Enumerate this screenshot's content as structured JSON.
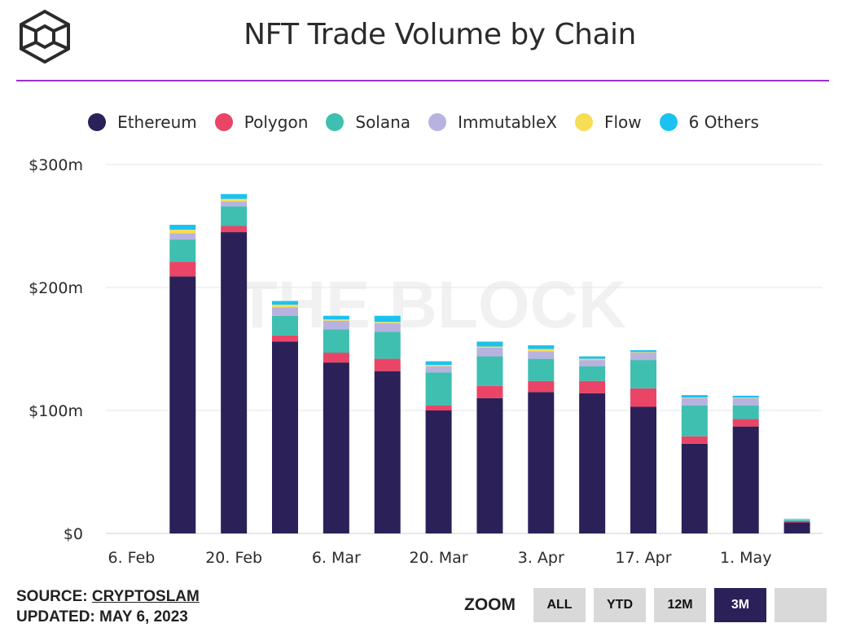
{
  "header": {
    "title": "NFT Trade Volume by Chain"
  },
  "colors": {
    "accent_rule": "#9b2fd6",
    "active_button": "#2b2058"
  },
  "legend": [
    {
      "label": "Ethereum",
      "color": "#2b2158"
    },
    {
      "label": "Polygon",
      "color": "#ea4466"
    },
    {
      "label": "Solana",
      "color": "#3ebfb0"
    },
    {
      "label": "ImmutableX",
      "color": "#b8b2e0"
    },
    {
      "label": "Flow",
      "color": "#f7dd55"
    },
    {
      "label": "6 Others",
      "color": "#1bc2ef"
    }
  ],
  "watermark": "THE BLOCK",
  "chart_data": {
    "type": "bar",
    "stacked": true,
    "title": "NFT Trade Volume by Chain",
    "x_ticks": [
      "6. Feb",
      "20. Feb",
      "6. Mar",
      "20. Mar",
      "3. Apr",
      "17. Apr",
      "1. May"
    ],
    "y_ticks": [
      "$0",
      "$100m",
      "$200m",
      "$300m"
    ],
    "ylim": [
      0,
      300
    ],
    "y_unit": "$m",
    "grid": true,
    "legend_position": "top",
    "categories": [
      "6. Feb",
      "13. Feb",
      "20. Feb",
      "27. Feb",
      "6. Mar",
      "13. Mar",
      "20. Mar",
      "27. Mar",
      "3. Apr",
      "10. Apr",
      "17. Apr",
      "24. Apr",
      "1. May",
      "8. May"
    ],
    "series": [
      {
        "name": "Ethereum",
        "color": "#2b2158",
        "values": [
          0,
          209,
          245,
          156,
          139,
          132,
          100,
          110,
          115,
          114,
          103,
          73,
          87,
          9
        ]
      },
      {
        "name": "Polygon",
        "color": "#ea4466",
        "values": [
          0,
          12,
          5,
          5,
          8,
          10,
          4,
          10,
          9,
          10,
          15,
          6,
          6,
          1
        ]
      },
      {
        "name": "Solana",
        "color": "#3ebfb0",
        "values": [
          0,
          18,
          16,
          16,
          19,
          22,
          27,
          24,
          18,
          12,
          23,
          25,
          11,
          1
        ]
      },
      {
        "name": "ImmutableX",
        "color": "#b8b2e0",
        "values": [
          0,
          5,
          4,
          7,
          7,
          7,
          5,
          7,
          6,
          5,
          6,
          6,
          6,
          0.5
        ]
      },
      {
        "name": "Flow",
        "color": "#f7dd55",
        "values": [
          0,
          3,
          2,
          2,
          1,
          1,
          1,
          1,
          2,
          1,
          0.5,
          0.5,
          0.5,
          0.2
        ]
      },
      {
        "name": "6 Others",
        "color": "#1bc2ef",
        "values": [
          0,
          4,
          4,
          3,
          3,
          5,
          3,
          4,
          3,
          2,
          1.5,
          2,
          1.5,
          0.3
        ]
      }
    ]
  },
  "footer": {
    "source_label": "SOURCE:",
    "source_name": "CRYPTOSLAM",
    "updated": "UPDATED: MAY 6, 2023"
  },
  "zoom": {
    "label": "ZOOM",
    "buttons": [
      "ALL",
      "YTD",
      "12M",
      "3M",
      ""
    ],
    "active": "3M"
  }
}
